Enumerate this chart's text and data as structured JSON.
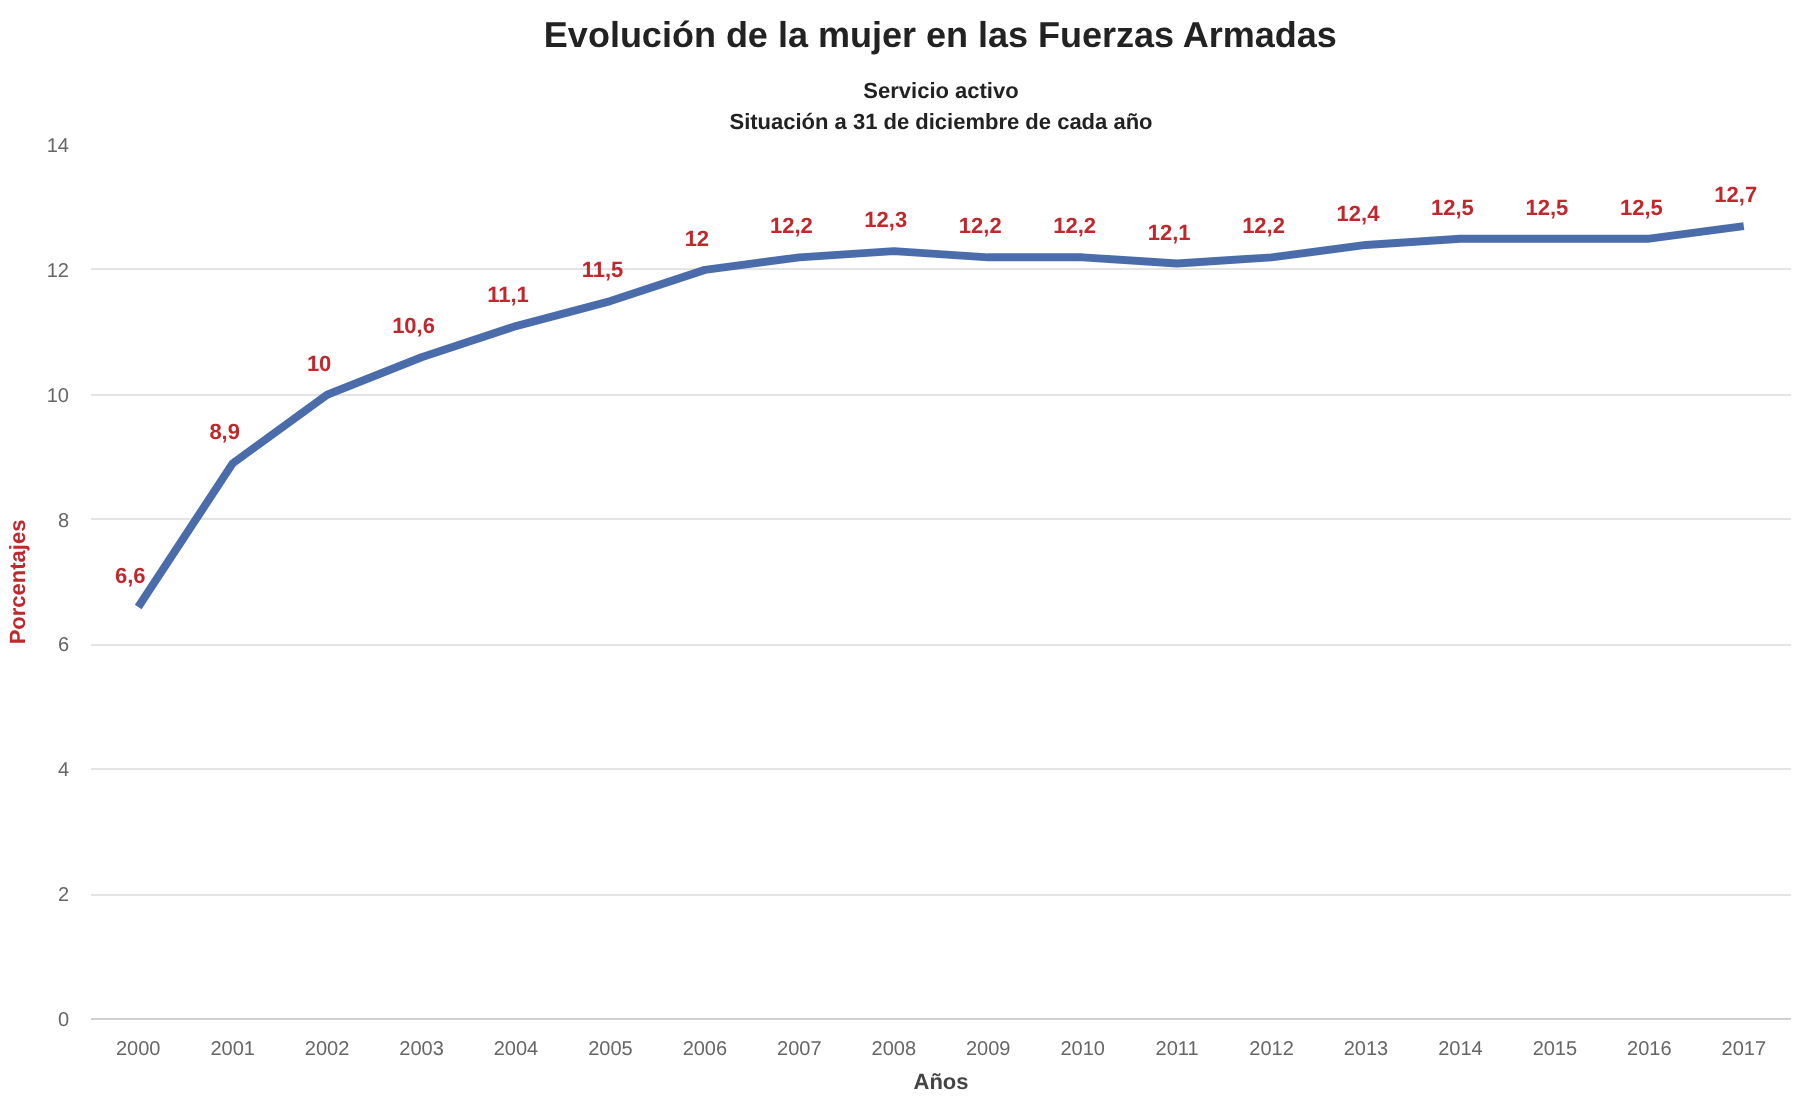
{
  "chart_data": {
    "type": "line",
    "title": "Evolución de la mujer en las Fuerzas Armadas",
    "subtitle": "Servicio activo\nSituación a 31 de diciembre de cada año",
    "xlabel": "Años",
    "ylabel": "Porcentajes",
    "categories": [
      "2000",
      "2001",
      "2002",
      "2003",
      "2004",
      "2005",
      "2006",
      "2007",
      "2008",
      "2009",
      "2010",
      "2011",
      "2012",
      "2013",
      "2014",
      "2015",
      "2016",
      "2017"
    ],
    "series": [
      {
        "color": "#4a6cab",
        "values": [
          6.6,
          8.9,
          10,
          10.6,
          11.1,
          11.5,
          12,
          12.2,
          12.3,
          12.2,
          12.2,
          12.1,
          12.2,
          12.4,
          12.5,
          12.5,
          12.5,
          12.7
        ],
        "value_labels": [
          "6,6",
          "8,9",
          "10",
          "10,6",
          "11,1",
          "11,5",
          "12",
          "12,2",
          "12,3",
          "12,2",
          "12,2",
          "12,1",
          "12,2",
          "12,4",
          "12,5",
          "12,5",
          "12,5",
          "12,7"
        ]
      }
    ],
    "ylim": [
      0,
      14
    ],
    "yticks": [
      0,
      2,
      4,
      6,
      8,
      10,
      12,
      14
    ],
    "grid": "y",
    "marker": "none",
    "line_style": "solid"
  }
}
